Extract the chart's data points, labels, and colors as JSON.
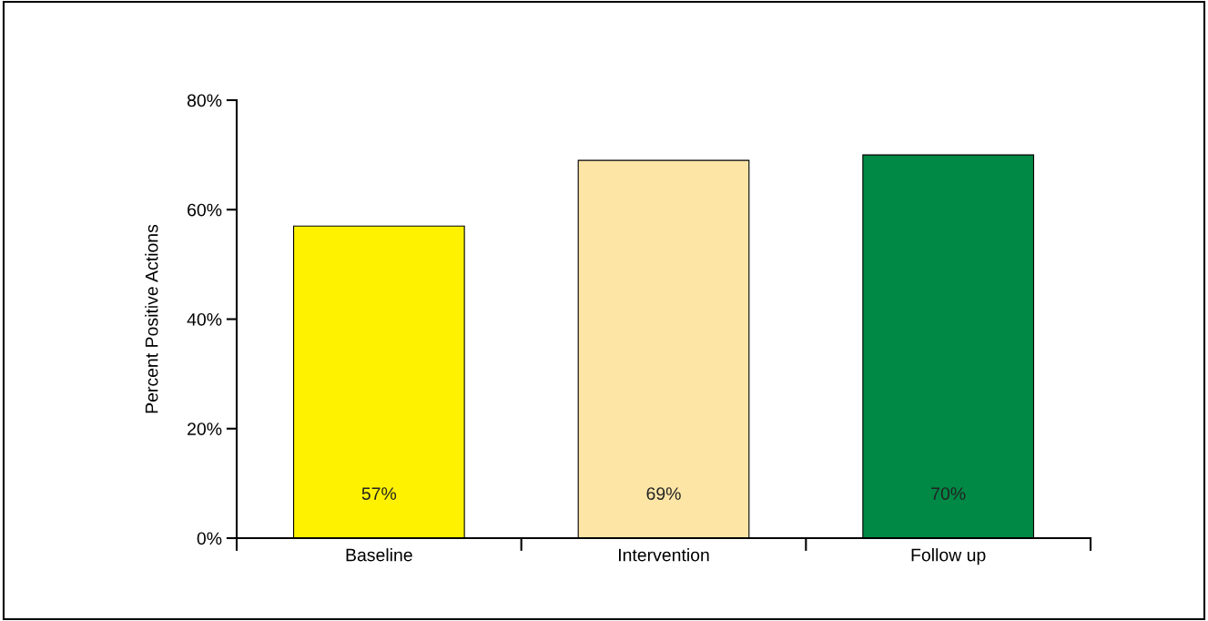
{
  "chart_data": {
    "type": "bar",
    "ylabel": "Percent Positive Actions",
    "categories": [
      "Baseline",
      "Intervention",
      "Follow up"
    ],
    "values": [
      57,
      69,
      70
    ],
    "colors": [
      "#fff200",
      "#fde5a6",
      "#008845"
    ],
    "value_labels": [
      "57%",
      "69%",
      "70%"
    ],
    "ylim": [
      0,
      80
    ],
    "yticks": [
      {
        "value": 0,
        "label": "0%"
      },
      {
        "value": 20,
        "label": "20%"
      },
      {
        "value": 40,
        "label": "40%"
      },
      {
        "value": 60,
        "label": "60%"
      },
      {
        "value": 80,
        "label": "80%"
      }
    ],
    "grid": false
  }
}
